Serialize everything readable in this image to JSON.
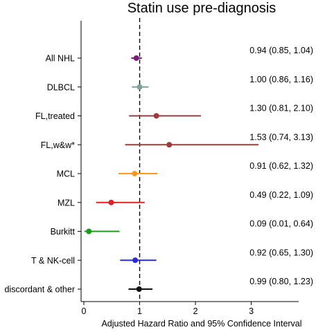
{
  "chart_data": {
    "type": "forest",
    "title": "Statin use pre-diagnosis",
    "xlabel": "Adjusted Hazard Ratio and 95% Confidence Interval",
    "xlim": [
      -0.05,
      3.85
    ],
    "xticks": [
      0,
      1,
      2,
      3
    ],
    "reference_line": 1,
    "rows": [
      {
        "label": "All NHL",
        "hr": 0.94,
        "lo": 0.85,
        "hi": 1.04,
        "text": "0.94 (0.85, 1.04)",
        "color": "#7b1e7b"
      },
      {
        "label": "DLBCL",
        "hr": 1.0,
        "lo": 0.86,
        "hi": 1.16,
        "text": "1.00 (0.86, 1.16)",
        "color": "#7fa39b"
      },
      {
        "label": "FL,treated",
        "hr": 1.3,
        "lo": 0.81,
        "hi": 2.1,
        "text": "1.30 (0.81, 2.10)",
        "color": "#9e3a3a"
      },
      {
        "label": "FL,w&w*",
        "hr": 1.53,
        "lo": 0.74,
        "hi": 3.13,
        "text": "1.53 (0.74, 3.13)",
        "color": "#9e3a3a"
      },
      {
        "label": "MCL",
        "hr": 0.91,
        "lo": 0.62,
        "hi": 1.32,
        "text": "0.91 (0.62, 1.32)",
        "color": "#ff9a1f"
      },
      {
        "label": "MZL",
        "hr": 0.49,
        "lo": 0.22,
        "hi": 1.09,
        "text": "0.49 (0.22, 1.09)",
        "color": "#e02020"
      },
      {
        "label": "Burkitt",
        "hr": 0.09,
        "lo": 0.01,
        "hi": 0.64,
        "text": "0.09 (0.01, 0.64)",
        "color": "#1a9a1a"
      },
      {
        "label": "T & NK-cell",
        "hr": 0.92,
        "lo": 0.65,
        "hi": 1.3,
        "text": "0.92 (0.65, 1.30)",
        "color": "#2a2ae0"
      },
      {
        "label": "discordant & other",
        "hr": 0.99,
        "lo": 0.8,
        "hi": 1.23,
        "text": "0.99 (0.80, 1.23)",
        "color": "#111111"
      }
    ]
  }
}
